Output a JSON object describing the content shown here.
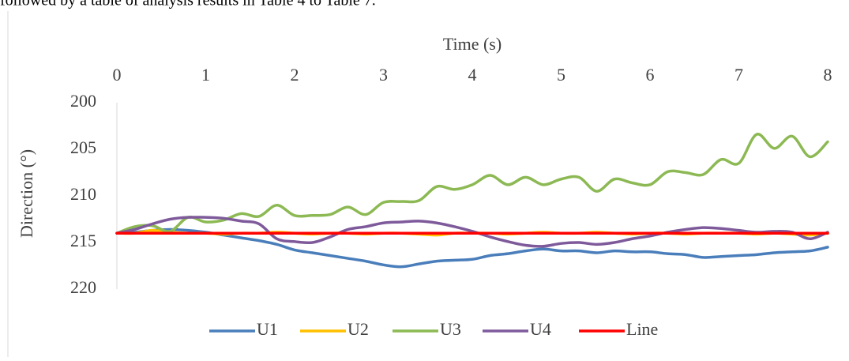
{
  "page_text": "followed by a table of analysis results in Table 4 to Table 7.",
  "chart_data": {
    "type": "line",
    "xlabel": "Time (s)",
    "ylabel": "Direction (°)",
    "x": [
      0,
      0.2,
      0.4,
      0.6,
      0.8,
      1,
      1.2,
      1.4,
      1.6,
      1.8,
      2,
      2.2,
      2.4,
      2.6,
      2.8,
      3,
      3.2,
      3.4,
      3.6,
      3.8,
      4,
      4.2,
      4.4,
      4.6,
      4.8,
      5,
      5.2,
      5.4,
      5.6,
      5.8,
      6,
      6.2,
      6.4,
      6.6,
      6.8,
      7,
      7.2,
      7.4,
      7.6,
      7.8,
      8
    ],
    "xlim": [
      0,
      8
    ],
    "xticks": [
      0,
      1,
      2,
      3,
      4,
      5,
      6,
      7,
      8
    ],
    "x_axis_position": "top",
    "ylim": [
      200,
      220
    ],
    "yticks": [
      200,
      205,
      210,
      215,
      220
    ],
    "y_inverted": true,
    "grid": false,
    "legend": "bottom",
    "series": [
      {
        "name": "U1",
        "color": "#4a7ebb",
        "values": [
          214,
          213.9,
          213.7,
          213.6,
          213.7,
          213.9,
          214.2,
          214.5,
          214.8,
          215.2,
          215.8,
          216.1,
          216.4,
          216.7,
          217,
          217.4,
          217.6,
          217.3,
          217,
          216.9,
          216.8,
          216.4,
          216.2,
          215.9,
          215.7,
          215.9,
          215.9,
          216.1,
          215.9,
          216,
          216,
          216.2,
          216.3,
          216.6,
          216.5,
          216.4,
          216.3,
          216.1,
          216,
          215.9,
          215.5
        ]
      },
      {
        "name": "U2",
        "color": "#ffc000",
        "values": [
          214,
          214,
          213.7,
          213.9,
          214,
          214,
          214.1,
          214,
          214,
          213.9,
          214,
          214.1,
          214,
          214,
          214.1,
          214,
          214,
          214.1,
          214.2,
          214,
          214,
          214,
          214.1,
          214,
          213.9,
          214,
          214,
          213.9,
          214,
          214.1,
          214,
          214,
          214.1,
          214,
          214,
          214,
          214.1,
          214,
          214.1,
          214.2,
          214
        ]
      },
      {
        "name": "U3",
        "color": "#8cb953",
        "values": [
          214,
          213.3,
          213.2,
          213.8,
          212.3,
          212.8,
          212.6,
          211.9,
          212.2,
          211,
          212.1,
          212.1,
          212,
          211.2,
          212,
          210.7,
          210.6,
          210.5,
          209,
          209.3,
          208.8,
          207.8,
          208.8,
          208,
          208.8,
          208.2,
          208,
          209.5,
          208.2,
          208.6,
          208.8,
          207.4,
          207.5,
          207.7,
          206.1,
          206.5,
          203.4,
          204.9,
          203.6,
          205.8,
          204.2
        ]
      },
      {
        "name": "U4",
        "color": "#7e5a9b",
        "values": [
          214,
          213.6,
          213,
          212.5,
          212.3,
          212.3,
          212.4,
          212.7,
          213,
          214.6,
          214.9,
          215,
          214.4,
          213.6,
          213.3,
          212.9,
          212.8,
          212.7,
          212.9,
          213.3,
          213.8,
          214.4,
          214.9,
          215.3,
          215.4,
          215.1,
          215,
          215.2,
          215,
          214.6,
          214.3,
          213.9,
          213.6,
          213.4,
          213.5,
          213.7,
          213.9,
          213.8,
          213.9,
          214.6,
          213.9
        ]
      },
      {
        "name": "Line",
        "color": "#ff0000",
        "values": [
          214,
          214,
          214,
          214,
          214,
          214,
          214,
          214,
          214,
          214,
          214,
          214,
          214,
          214,
          214,
          214,
          214,
          214,
          214,
          214,
          214,
          214,
          214,
          214,
          214,
          214,
          214,
          214,
          214,
          214,
          214,
          214,
          214,
          214,
          214,
          214,
          214,
          214,
          214,
          214,
          214
        ]
      }
    ]
  }
}
